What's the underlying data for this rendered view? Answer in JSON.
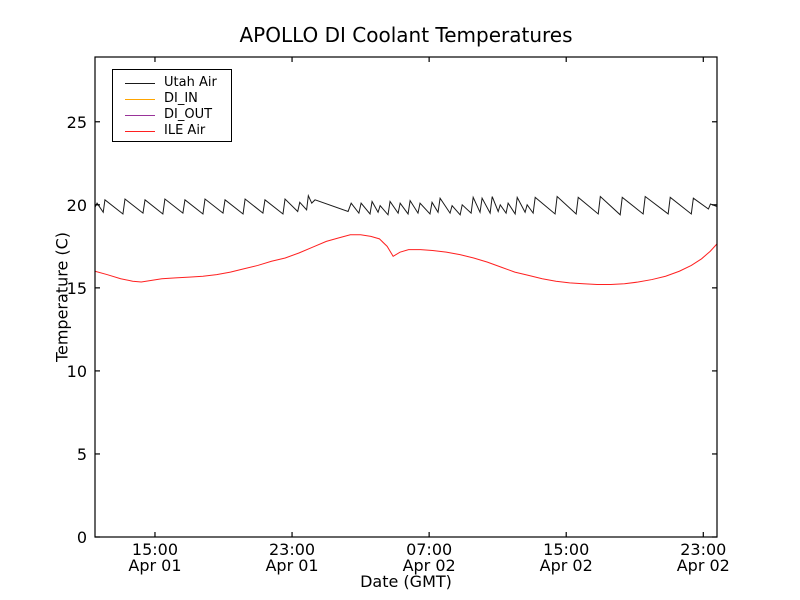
{
  "chart_data": {
    "type": "line",
    "title": "APOLLO DI Coolant Temperatures",
    "xlabel": "Date (GMT)",
    "ylabel": "Temperature (C)",
    "x_unit": "hours since Apr 01 00:00 GMT",
    "xlim": [
      11.5,
      47.8
    ],
    "ylim": [
      0,
      28.9
    ],
    "grid": false,
    "legend_position": "upper left",
    "yticks": [
      0,
      5,
      10,
      15,
      20,
      25
    ],
    "xticks": [
      {
        "value": 15,
        "line1": "15:00",
        "line2": "Apr 01"
      },
      {
        "value": 23,
        "line1": "23:00",
        "line2": "Apr 01"
      },
      {
        "value": 31,
        "line1": "07:00",
        "line2": "Apr 02"
      },
      {
        "value": 39,
        "line1": "15:00",
        "line2": "Apr 02"
      },
      {
        "value": 47,
        "line1": "23:00",
        "line2": "Apr 02"
      }
    ],
    "series": [
      {
        "name": "Utah Air",
        "color": "#1a1a1a",
        "points": [
          [
            11.5,
            19.85
          ],
          [
            11.62,
            20.1
          ],
          [
            11.98,
            19.55
          ],
          [
            12.08,
            20.3
          ],
          [
            13.13,
            19.45
          ],
          [
            13.25,
            20.35
          ],
          [
            14.3,
            19.5
          ],
          [
            14.42,
            20.3
          ],
          [
            15.46,
            19.45
          ],
          [
            15.58,
            20.35
          ],
          [
            16.63,
            19.5
          ],
          [
            16.75,
            20.3
          ],
          [
            17.8,
            19.45
          ],
          [
            17.92,
            20.35
          ],
          [
            18.97,
            19.5
          ],
          [
            19.09,
            20.3
          ],
          [
            20.14,
            19.45
          ],
          [
            20.26,
            20.35
          ],
          [
            21.3,
            19.5
          ],
          [
            21.42,
            20.3
          ],
          [
            22.47,
            19.45
          ],
          [
            22.59,
            20.35
          ],
          [
            23.33,
            19.6
          ],
          [
            23.45,
            20.15
          ],
          [
            23.85,
            19.7
          ],
          [
            23.95,
            20.55
          ],
          [
            24.15,
            20.1
          ],
          [
            24.34,
            20.3
          ],
          [
            26.27,
            19.6
          ],
          [
            26.45,
            20.1
          ],
          [
            26.9,
            19.5
          ],
          [
            27.03,
            20.1
          ],
          [
            27.55,
            19.45
          ],
          [
            27.67,
            20.2
          ],
          [
            28.02,
            19.55
          ],
          [
            28.14,
            19.95
          ],
          [
            28.6,
            19.4
          ],
          [
            28.72,
            20.2
          ],
          [
            29.19,
            19.5
          ],
          [
            29.31,
            20.1
          ],
          [
            29.77,
            19.45
          ],
          [
            29.89,
            20.25
          ],
          [
            30.35,
            19.5
          ],
          [
            30.47,
            20.1
          ],
          [
            31.05,
            19.45
          ],
          [
            31.17,
            20.15
          ],
          [
            31.52,
            19.55
          ],
          [
            31.64,
            20.4
          ],
          [
            32.22,
            19.5
          ],
          [
            32.34,
            19.95
          ],
          [
            32.81,
            19.4
          ],
          [
            32.93,
            20.0
          ],
          [
            33.45,
            19.5
          ],
          [
            33.57,
            20.45
          ],
          [
            33.97,
            19.55
          ],
          [
            34.09,
            20.4
          ],
          [
            34.56,
            19.5
          ],
          [
            34.68,
            20.5
          ],
          [
            35.03,
            19.6
          ],
          [
            35.15,
            20.0
          ],
          [
            35.49,
            19.5
          ],
          [
            35.61,
            20.1
          ],
          [
            36.02,
            19.45
          ],
          [
            36.14,
            20.45
          ],
          [
            36.6,
            19.55
          ],
          [
            36.72,
            20.0
          ],
          [
            37.07,
            19.5
          ],
          [
            37.19,
            20.45
          ],
          [
            38.35,
            19.45
          ],
          [
            38.47,
            20.5
          ],
          [
            39.58,
            19.45
          ],
          [
            39.7,
            20.45
          ],
          [
            40.87,
            19.45
          ],
          [
            40.99,
            20.5
          ],
          [
            42.15,
            19.4
          ],
          [
            42.27,
            20.45
          ],
          [
            43.49,
            19.45
          ],
          [
            43.61,
            20.5
          ],
          [
            44.95,
            19.45
          ],
          [
            45.07,
            20.45
          ],
          [
            46.3,
            19.45
          ],
          [
            46.42,
            20.4
          ],
          [
            47.3,
            19.75
          ],
          [
            47.42,
            20.05
          ],
          [
            47.8,
            19.9
          ]
        ]
      },
      {
        "name": "DI_IN",
        "color": "#ffa500",
        "points": [
          [
            11.5,
            0
          ],
          [
            47.8,
            0
          ]
        ]
      },
      {
        "name": "DI_OUT",
        "color": "#993399",
        "points": [
          [
            11.5,
            0
          ],
          [
            47.8,
            0
          ]
        ]
      },
      {
        "name": "ILE Air",
        "color": "#ff2020",
        "points": [
          [
            11.5,
            16.0
          ],
          [
            12.2,
            15.8
          ],
          [
            13.0,
            15.55
          ],
          [
            13.7,
            15.4
          ],
          [
            14.2,
            15.35
          ],
          [
            14.8,
            15.45
          ],
          [
            15.4,
            15.55
          ],
          [
            16.2,
            15.6
          ],
          [
            17.0,
            15.65
          ],
          [
            17.8,
            15.7
          ],
          [
            18.6,
            15.8
          ],
          [
            19.4,
            15.95
          ],
          [
            20.2,
            16.15
          ],
          [
            21.0,
            16.35
          ],
          [
            21.8,
            16.6
          ],
          [
            22.6,
            16.8
          ],
          [
            23.4,
            17.1
          ],
          [
            24.2,
            17.45
          ],
          [
            25.0,
            17.8
          ],
          [
            25.7,
            18.0
          ],
          [
            26.4,
            18.2
          ],
          [
            27.0,
            18.2
          ],
          [
            27.6,
            18.1
          ],
          [
            28.1,
            17.95
          ],
          [
            28.55,
            17.5
          ],
          [
            28.9,
            16.9
          ],
          [
            29.3,
            17.15
          ],
          [
            29.8,
            17.3
          ],
          [
            30.5,
            17.3
          ],
          [
            31.2,
            17.25
          ],
          [
            32.0,
            17.15
          ],
          [
            32.8,
            17.0
          ],
          [
            33.6,
            16.8
          ],
          [
            34.4,
            16.55
          ],
          [
            35.2,
            16.25
          ],
          [
            36.0,
            15.95
          ],
          [
            36.8,
            15.75
          ],
          [
            37.6,
            15.55
          ],
          [
            38.4,
            15.4
          ],
          [
            39.2,
            15.3
          ],
          [
            40.0,
            15.25
          ],
          [
            40.8,
            15.2
          ],
          [
            41.6,
            15.2
          ],
          [
            42.4,
            15.25
          ],
          [
            43.2,
            15.35
          ],
          [
            44.0,
            15.5
          ],
          [
            44.8,
            15.7
          ],
          [
            45.6,
            16.0
          ],
          [
            46.3,
            16.35
          ],
          [
            46.9,
            16.75
          ],
          [
            47.4,
            17.2
          ],
          [
            47.8,
            17.65
          ]
        ]
      }
    ]
  }
}
